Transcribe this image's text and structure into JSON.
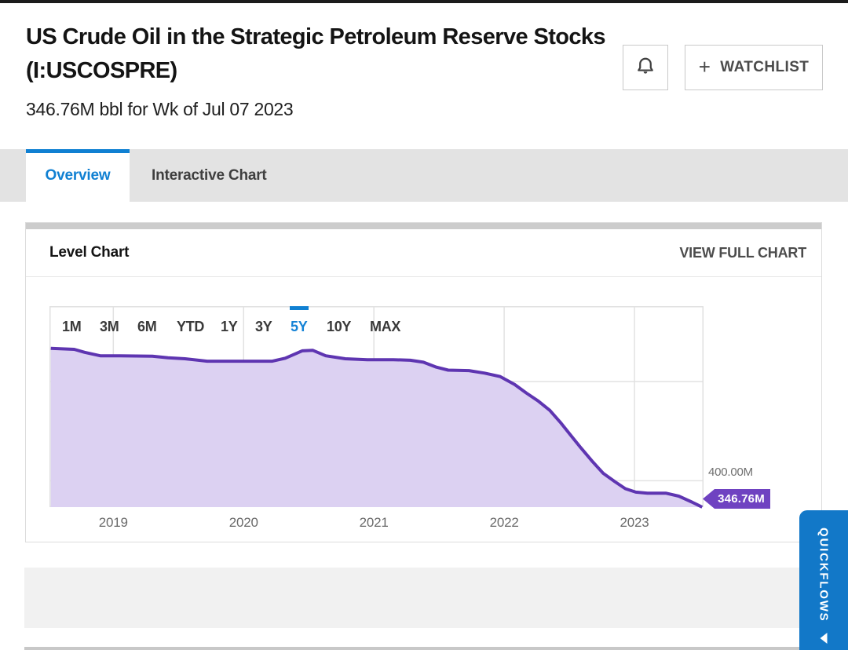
{
  "page": {
    "title": "US Crude Oil in the Strategic Petroleum Reserve Stocks (I:USCOSPRE)",
    "subtitle": "346.76M bbl for Wk of Jul 07 2023"
  },
  "header_actions": {
    "alert_icon": "bell-icon",
    "watchlist_plus": "+",
    "watchlist_label": "WATCHLIST"
  },
  "tabs": [
    {
      "label": "Overview",
      "active": true
    },
    {
      "label": "Interactive Chart",
      "active": false
    }
  ],
  "card": {
    "title": "Level Chart",
    "action": "VIEW FULL CHART"
  },
  "range_buttons": [
    "1M",
    "3M",
    "6M",
    "YTD",
    "1Y",
    "3Y",
    "5Y",
    "10Y",
    "MAX"
  ],
  "active_range": "5Y",
  "chart_data": {
    "type": "area",
    "title": "Level Chart",
    "series_name": "US Crude Oil in the Strategic Petroleum Reserve Stocks",
    "unit": "M bbl",
    "x_domain": [
      2018.51,
      2023.53
    ],
    "x_ticks": [
      2019,
      2020,
      2021,
      2022,
      2023
    ],
    "ylim": [
      346.76,
      752
    ],
    "y_gridlines": [
      400,
      600
    ],
    "y_axis_label_right": "400.00M",
    "last_value_label": "346.76M",
    "last_value": 346.76,
    "grid": true,
    "legend": false,
    "line_color": "#5e35b1",
    "fill_color": "#dcd1f2",
    "badge_color": "#6f42c1",
    "points": [
      [
        2018.52,
        667
      ],
      [
        2018.7,
        665
      ],
      [
        2018.78,
        659
      ],
      [
        2018.9,
        652
      ],
      [
        2019.05,
        652
      ],
      [
        2019.3,
        651
      ],
      [
        2019.42,
        648
      ],
      [
        2019.55,
        646
      ],
      [
        2019.72,
        641
      ],
      [
        2019.95,
        641
      ],
      [
        2020.22,
        641
      ],
      [
        2020.32,
        647
      ],
      [
        2020.45,
        662
      ],
      [
        2020.53,
        663
      ],
      [
        2020.63,
        652
      ],
      [
        2020.78,
        646
      ],
      [
        2020.95,
        644
      ],
      [
        2021.15,
        644
      ],
      [
        2021.28,
        643
      ],
      [
        2021.38,
        639
      ],
      [
        2021.48,
        629
      ],
      [
        2021.57,
        623
      ],
      [
        2021.73,
        622
      ],
      [
        2021.85,
        617
      ],
      [
        2021.97,
        610
      ],
      [
        2022.08,
        594
      ],
      [
        2022.17,
        577
      ],
      [
        2022.26,
        561
      ],
      [
        2022.35,
        542
      ],
      [
        2022.43,
        518
      ],
      [
        2022.51,
        492
      ],
      [
        2022.59,
        466
      ],
      [
        2022.68,
        438
      ],
      [
        2022.76,
        415
      ],
      [
        2022.85,
        398
      ],
      [
        2022.93,
        384
      ],
      [
        2023.01,
        377
      ],
      [
        2023.1,
        375
      ],
      [
        2023.24,
        375
      ],
      [
        2023.34,
        369
      ],
      [
        2023.44,
        357
      ],
      [
        2023.52,
        346.76
      ]
    ]
  },
  "quickflows": {
    "label": "QUICKFLOWS"
  }
}
